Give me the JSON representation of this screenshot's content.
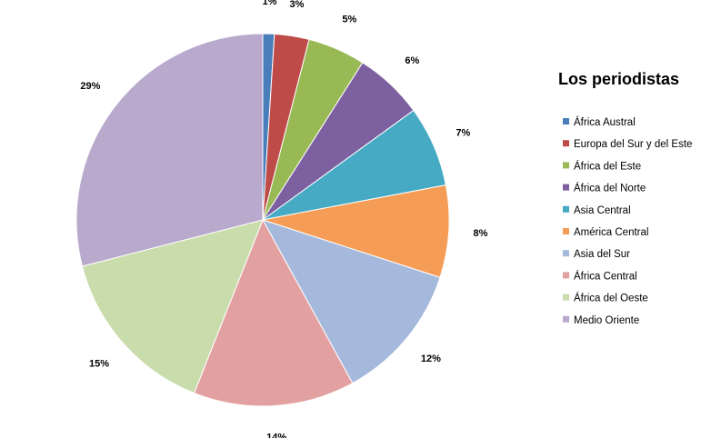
{
  "chart_data": {
    "type": "pie",
    "title": "Los periodistas",
    "legend_position": "right",
    "categories": [
      "África Austral",
      "Europa del Sur y del Este",
      "África del Este",
      "África del Norte",
      "Asia Central",
      "América Central",
      "Asia del Sur",
      "África Central",
      "África del Oeste",
      "Medio Oriente"
    ],
    "values": [
      1,
      3,
      5,
      6,
      7,
      8,
      12,
      14,
      15,
      29
    ],
    "data_labels": [
      "1%",
      "3%",
      "5%",
      "6%",
      "7%",
      "8%",
      "12%",
      "14%",
      "15%",
      "29%"
    ],
    "colors": [
      "#4a7ebb",
      "#be4b48",
      "#98b954",
      "#7d60a0",
      "#46aac4",
      "#f59d56",
      "#a5b9dd",
      "#e3a0a0",
      "#c9dcab",
      "#b9a9cc"
    ]
  }
}
